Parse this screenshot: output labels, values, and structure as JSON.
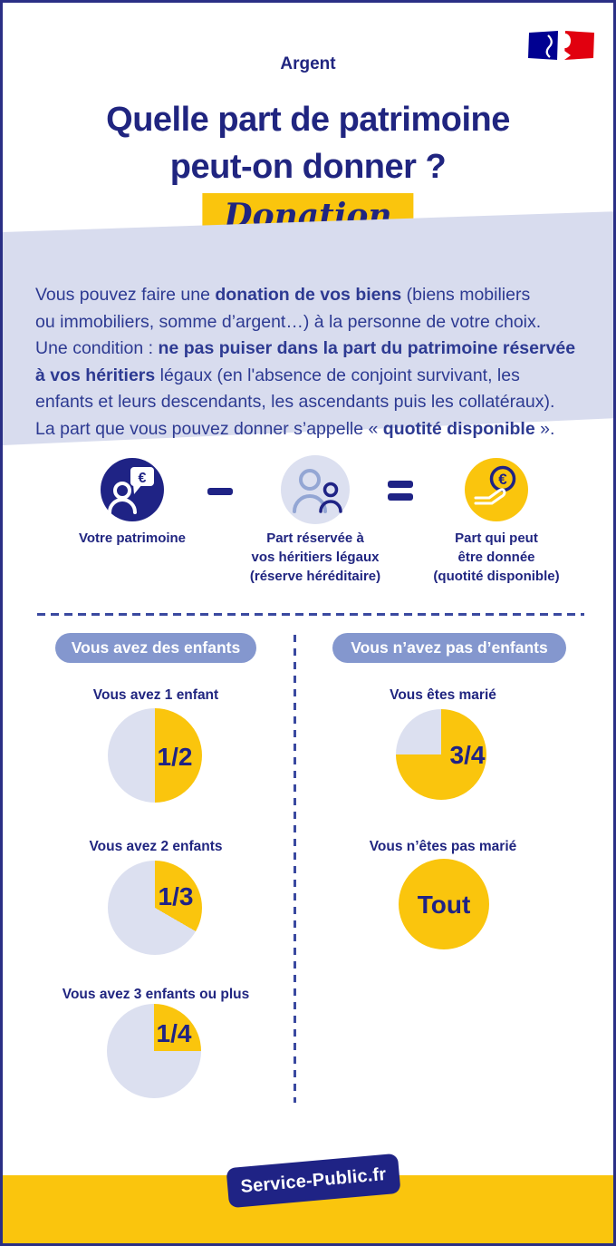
{
  "colors": {
    "navy": "#1F2385",
    "heading": "#202580",
    "body_text": "#2D3A92",
    "yellow": "#FAC50D",
    "lavender_band": "#D8DCEE",
    "pie_reserved": "#DCE0F0",
    "pill_blue": "#8497CE",
    "flag_blue": "#000091",
    "flag_red": "#E1000F",
    "dash": "#3A49A0"
  },
  "header": {
    "category": "Argent",
    "title_line1": "Quelle part de patrimoine",
    "title_line2": "peut-on donner ?",
    "tag": "Donation",
    "logo": "french-republic-logo"
  },
  "intro_lines": [
    [
      {
        "t": "Vous pouvez faire une ",
        "b": false
      },
      {
        "t": "donation de vos biens",
        "b": true
      },
      {
        "t": " (biens mobiliers",
        "b": false
      }
    ],
    [
      {
        "t": "ou immobiliers, somme d’argent…) à la personne de votre choix.",
        "b": false
      }
    ],
    [
      {
        "t": "Une condition : ",
        "b": false
      },
      {
        "t": "ne pas puiser dans la part du patrimoine réservée",
        "b": true
      }
    ],
    [
      {
        "t": "à vos héritiers",
        "b": true
      },
      {
        "t": " légaux (en l'absence de conjoint survivant, les",
        "b": false
      }
    ],
    [
      {
        "t": "enfants et leurs descendants, les ascendants puis les collatéraux).",
        "b": false
      }
    ],
    [
      {
        "t": "La part que vous pouvez donner s’appelle « ",
        "b": false
      },
      {
        "t": "quotité disponible",
        "b": true
      },
      {
        "t": " ».",
        "b": false
      }
    ]
  ],
  "equation": {
    "minus": "−",
    "equals": "=",
    "patrimoine": {
      "label": "Votre patrimoine",
      "icon": "person-euro-bubble-icon"
    },
    "reserve": {
      "label_1": "Part réservée à",
      "label_2": "vos héritiers légaux",
      "label_3": "(réserve héréditaire)",
      "icon": "two-persons-icon"
    },
    "donnee": {
      "label_1": "Part qui peut",
      "label_2": "être donnée",
      "label_3": "(quotité disponible)",
      "icon": "giving-hand-euro-icon"
    }
  },
  "columns": {
    "left": {
      "header": "Vous avez des enfants",
      "pies": [
        {
          "title": "Vous avez 1 enfant",
          "fraction": "1/2",
          "value": 0.5
        },
        {
          "title": "Vous avez 2 enfants",
          "fraction": "1/3",
          "value": 0.3333
        },
        {
          "title": "Vous avez 3 enfants ou plus",
          "fraction": "1/4",
          "value": 0.25
        }
      ]
    },
    "right": {
      "header": "Vous n’avez pas d’enfants",
      "pies": [
        {
          "title": "Vous êtes marié",
          "fraction": "3/4",
          "value": 0.75
        },
        {
          "title": "Vous n’êtes pas marié",
          "fraction": "Tout",
          "value": 1.0
        }
      ]
    }
  },
  "footer": {
    "brand": "Service-Public.fr"
  },
  "chart_data": [
    {
      "type": "pie",
      "title": "Vous avez 1 enfant",
      "slices": [
        {
          "label": "quotité disponible (part qui peut être donnée)",
          "value": 0.5,
          "color": "#FAC50D"
        },
        {
          "label": "réserve héréditaire",
          "value": 0.5,
          "color": "#DCE0F0"
        }
      ],
      "annotation": "1/2"
    },
    {
      "type": "pie",
      "title": "Vous avez 2 enfants",
      "slices": [
        {
          "label": "quotité disponible (part qui peut être donnée)",
          "value": 0.3333,
          "color": "#FAC50D"
        },
        {
          "label": "réserve héréditaire",
          "value": 0.6667,
          "color": "#DCE0F0"
        }
      ],
      "annotation": "1/3"
    },
    {
      "type": "pie",
      "title": "Vous avez 3 enfants ou plus",
      "slices": [
        {
          "label": "quotité disponible (part qui peut être donnée)",
          "value": 0.25,
          "color": "#FAC50D"
        },
        {
          "label": "réserve héréditaire",
          "value": 0.75,
          "color": "#DCE0F0"
        }
      ],
      "annotation": "1/4"
    },
    {
      "type": "pie",
      "title": "Vous êtes marié",
      "slices": [
        {
          "label": "quotité disponible (part qui peut être donnée)",
          "value": 0.75,
          "color": "#FAC50D"
        },
        {
          "label": "réserve héréditaire",
          "value": 0.25,
          "color": "#DCE0F0"
        }
      ],
      "annotation": "3/4"
    },
    {
      "type": "pie",
      "title": "Vous n’êtes pas marié",
      "slices": [
        {
          "label": "quotité disponible (part qui peut être donnée)",
          "value": 1.0,
          "color": "#FAC50D"
        }
      ],
      "annotation": "Tout"
    }
  ]
}
